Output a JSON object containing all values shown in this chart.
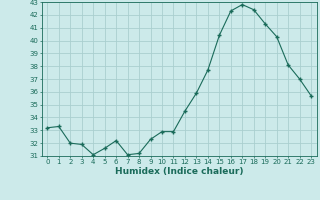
{
  "x": [
    0,
    1,
    2,
    3,
    4,
    5,
    6,
    7,
    8,
    9,
    10,
    11,
    12,
    13,
    14,
    15,
    16,
    17,
    18,
    19,
    20,
    21,
    22,
    23
  ],
  "y": [
    33.2,
    33.3,
    32.0,
    31.9,
    31.1,
    31.6,
    32.2,
    31.1,
    31.2,
    32.3,
    32.9,
    32.9,
    34.5,
    35.9,
    37.7,
    40.4,
    42.3,
    42.8,
    42.4,
    41.3,
    40.3,
    38.1,
    37.0,
    35.7
  ],
  "line_color": "#1a6b5a",
  "marker_color": "#1a6b5a",
  "bg_color": "#cceaea",
  "grid_color": "#aacfcf",
  "xlabel": "Humidex (Indice chaleur)",
  "ylim": [
    31,
    43
  ],
  "xlim": [
    -0.5,
    23.5
  ],
  "yticks": [
    31,
    32,
    33,
    34,
    35,
    36,
    37,
    38,
    39,
    40,
    41,
    42,
    43
  ],
  "xticks": [
    0,
    1,
    2,
    3,
    4,
    5,
    6,
    7,
    8,
    9,
    10,
    11,
    12,
    13,
    14,
    15,
    16,
    17,
    18,
    19,
    20,
    21,
    22,
    23
  ],
  "tick_fontsize": 5.0,
  "xlabel_fontsize": 6.5
}
